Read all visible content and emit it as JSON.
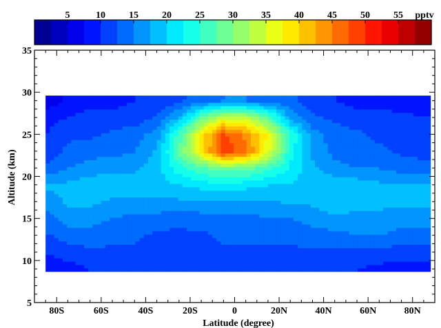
{
  "chart_data": {
    "type": "heatmap",
    "title": "",
    "xlabel": "Latitude (degree)",
    "ylabel": "Altitude (km)",
    "xlim": [
      -90,
      90
    ],
    "ylim": [
      5,
      35
    ],
    "x_ticks": [
      -80,
      -60,
      -40,
      -20,
      0,
      20,
      40,
      60,
      80
    ],
    "x_tick_labels": [
      "80S",
      "60S",
      "40S",
      "20S",
      "0",
      "20N",
      "40N",
      "60N",
      "80N"
    ],
    "y_ticks": [
      5,
      10,
      15,
      20,
      25,
      30,
      35
    ],
    "y_tick_labels": [
      "5",
      "10",
      "15",
      "20",
      "25",
      "30",
      "35"
    ],
    "grid": false,
    "colorbar": {
      "unit": "pptv",
      "range": [
        0,
        60
      ],
      "ticks": [
        5,
        10,
        15,
        20,
        25,
        30,
        35,
        40,
        45,
        50,
        55
      ],
      "tick_labels": [
        "5",
        "10",
        "15",
        "20",
        "25",
        "30",
        "35",
        "40",
        "45",
        "50",
        "55"
      ],
      "placement": "top",
      "colormap": [
        "#00007f",
        "#0000ff",
        "#0080ff",
        "#00ffff",
        "#80ff80",
        "#ffff00",
        "#ff8000",
        "#ff0000",
        "#7f0000"
      ]
    },
    "data_extent": {
      "lat": [
        -85,
        88
      ],
      "alt": [
        8.7,
        29.6
      ]
    },
    "x": [
      -85,
      -75,
      -65,
      -55,
      -45,
      -35,
      -25,
      -15,
      -5,
      5,
      15,
      25,
      35,
      45,
      55,
      65,
      75,
      85
    ],
    "y": [
      9,
      11,
      13,
      15,
      17,
      19,
      21,
      23,
      25,
      27,
      29
    ],
    "z": [
      [
        9,
        9,
        10,
        10,
        10,
        10,
        10,
        10,
        11,
        11,
        11,
        10,
        10,
        10,
        10,
        9,
        9,
        9
      ],
      [
        10,
        11,
        12,
        12,
        12,
        11,
        11,
        11,
        12,
        12,
        12,
        12,
        12,
        12,
        12,
        12,
        11,
        11
      ],
      [
        12,
        14,
        14,
        13,
        13,
        12,
        12,
        12,
        13,
        13,
        13,
        13,
        14,
        14,
        15,
        15,
        14,
        14
      ],
      [
        14,
        16,
        16,
        15,
        14,
        14,
        13,
        14,
        14,
        14,
        15,
        15,
        16,
        17,
        17,
        17,
        16,
        16
      ],
      [
        16,
        18,
        18,
        17,
        17,
        17,
        17,
        17,
        17,
        17,
        17,
        18,
        18,
        19,
        18,
        18,
        18,
        18
      ],
      [
        18,
        18,
        19,
        19,
        19,
        19,
        20,
        21,
        22,
        21,
        20,
        20,
        19,
        19,
        19,
        18,
        18,
        18
      ],
      [
        13,
        15,
        16,
        17,
        17,
        19,
        24,
        27,
        29,
        29,
        26,
        22,
        18,
        16,
        15,
        15,
        14,
        13
      ],
      [
        11,
        13,
        14,
        14,
        15,
        18,
        28,
        38,
        50,
        46,
        36,
        24,
        17,
        14,
        13,
        13,
        12,
        12
      ],
      [
        10,
        12,
        12,
        13,
        14,
        16,
        26,
        38,
        48,
        44,
        37,
        25,
        16,
        14,
        13,
        12,
        12,
        11
      ],
      [
        9,
        10,
        11,
        11,
        11,
        13,
        18,
        28,
        35,
        34,
        28,
        17,
        13,
        12,
        11,
        11,
        11,
        10
      ],
      [
        6,
        8,
        9,
        9,
        10,
        10,
        12,
        14,
        15,
        15,
        14,
        13,
        11,
        10,
        9,
        9,
        8,
        8
      ]
    ]
  }
}
